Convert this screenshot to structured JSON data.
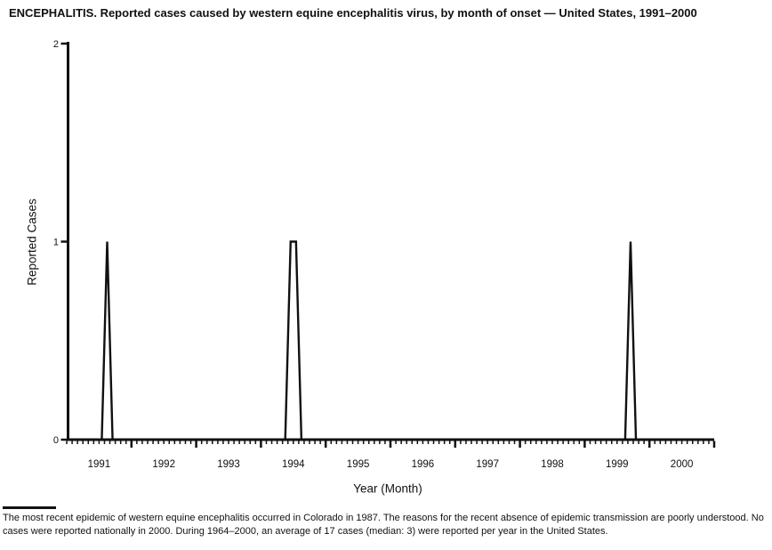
{
  "page": {
    "footnote": "The most recent epidemic of western equine encephalitis occurred in Colorado in 1987. The reasons for the recent absence of epidemic transmission are poorly understood. No cases were reported nationally in 2000. During 1964–2000, an average of 17 cases (median: 3) were reported per year in the United States."
  },
  "chart_data": {
    "type": "line",
    "title": "ENCEPHALITIS. Reported cases caused by western equine encephalitis virus, by month of onset — United States, 1991–2000",
    "xlabel": "Year (Month)",
    "ylabel": "Reported Cases",
    "ylim": [
      0,
      2
    ],
    "yticks": [
      0,
      1,
      2
    ],
    "x_years": [
      1991,
      1992,
      1993,
      1994,
      1995,
      1996,
      1997,
      1998,
      1999,
      2000
    ],
    "x_unit": "month",
    "months_per_year": 12,
    "baseline_value": 0,
    "nonzero_points": [
      {
        "year": 1991,
        "month": 8,
        "month_name": "Aug",
        "value": 1
      },
      {
        "year": 1994,
        "month": 6,
        "month_name": "Jun",
        "value": 1
      },
      {
        "year": 1994,
        "month": 7,
        "month_name": "Jul",
        "value": 1
      },
      {
        "year": 1999,
        "month": 9,
        "month_name": "Sep",
        "value": 1
      }
    ],
    "line_color": "#111111",
    "axis_color": "#111111",
    "grid": false,
    "legend": false
  }
}
